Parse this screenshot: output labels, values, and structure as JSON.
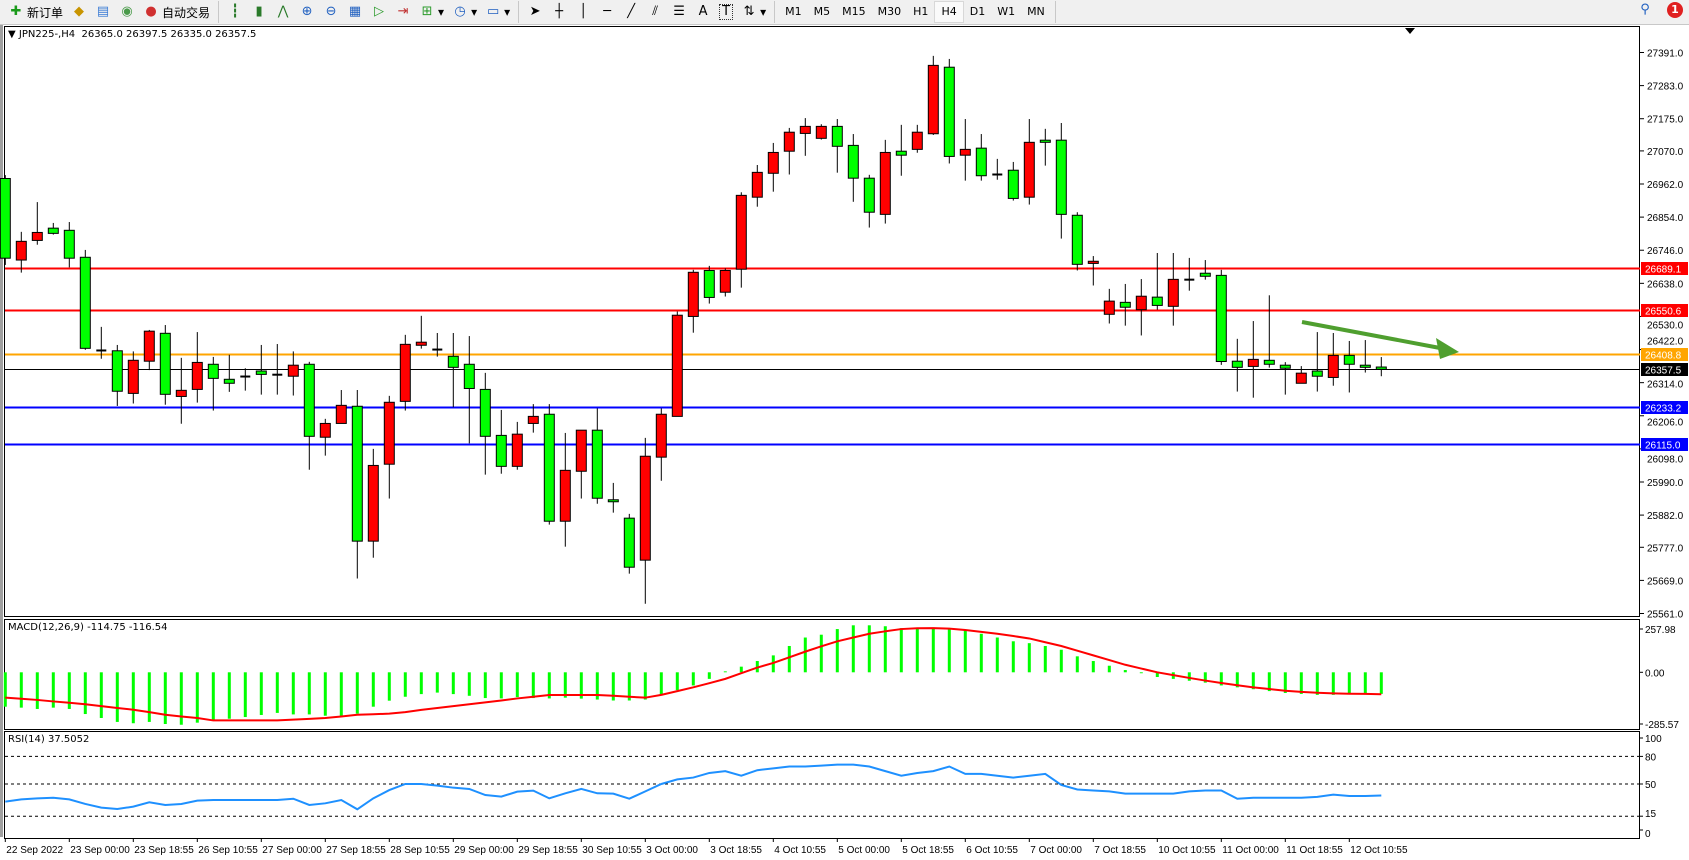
{
  "toolbar": {
    "buttons": [
      {
        "label": "新订单",
        "icon": "new-order-icon"
      },
      {
        "label": "",
        "icon": "gold-bar-icon"
      },
      {
        "label": "",
        "icon": "history-center-icon"
      },
      {
        "label": "",
        "icon": "signal-icon"
      },
      {
        "label": "自动交易",
        "icon": "auto-trading-icon"
      }
    ],
    "chart_tools": [
      "bar-chart-icon",
      "candlestick-icon",
      "line-chart-icon",
      "zoom-in-icon",
      "zoom-out-icon",
      "tile-windows-icon",
      "auto-scroll-icon",
      "chart-shift-icon",
      "indicators-icon",
      "periods-icon",
      "templates-icon"
    ],
    "draw_tools": [
      "cursor-icon",
      "crosshair-icon",
      "vertical-line-icon",
      "horizontal-line-icon",
      "trendline-icon",
      "equidistant-channel-icon",
      "fibonacci-icon",
      "text-icon",
      "text-label-icon",
      "arrows-icon"
    ],
    "draw_labels": {
      "text": "A",
      "label": "T"
    },
    "timeframes": [
      "M1",
      "M5",
      "M15",
      "M30",
      "H1",
      "H4",
      "D1",
      "W1",
      "MN"
    ],
    "active_timeframe": "H4",
    "notification_count": "1"
  },
  "chart": {
    "symbol": "JPN225-,H4",
    "ohlc": "26365.0 26397.5 26335.0 26357.5",
    "bull_color": "#ff0000",
    "bear_color": "#00ff00",
    "arrow_color": "#4f9f2f"
  },
  "chart_data": {
    "type": "candlestick",
    "ylim": [
      25561.0,
      27391.0
    ],
    "y_ticks": [
      "27391.0",
      "27283.0",
      "27175.0",
      "27070.0",
      "26962.0",
      "26854.0",
      "26746.0",
      "26638.0",
      "26530.0",
      "26422.0",
      "26314.0",
      "26206.0",
      "26098.0",
      "25990.0",
      "25882.0",
      "25777.0",
      "25669.0",
      "25561.0"
    ],
    "x_labels": [
      "22 Sep 2022",
      "23 Sep 00:00",
      "23 Sep 18:55",
      "26 Sep 10:55",
      "27 Sep 00:00",
      "27 Sep 18:55",
      "28 Sep 10:55",
      "29 Sep 00:00",
      "29 Sep 18:55",
      "30 Sep 10:55",
      "3 Oct 00:00",
      "3 Oct 18:55",
      "4 Oct 10:55",
      "5 Oct 00:00",
      "5 Oct 18:55",
      "6 Oct 10:55",
      "7 Oct 00:00",
      "7 Oct 18:55",
      "10 Oct 10:55",
      "11 Oct 00:00",
      "11 Oct 18:55",
      "12 Oct 10:55"
    ],
    "levels": [
      {
        "price": 26689.1,
        "label": "26689.1",
        "color": "#ff0000"
      },
      {
        "price": 26550.6,
        "label": "26550.6",
        "color": "#ff0000"
      },
      {
        "price": 26408.8,
        "label": "26408.8",
        "color": "#ffa500"
      },
      {
        "price": 26357.5,
        "label": "26357.5",
        "color": "#000000"
      },
      {
        "price": 26233.2,
        "label": "26233.2",
        "color": "#0000ff"
      },
      {
        "price": 26115.0,
        "label": "26115.0",
        "color": "#0000ff"
      }
    ],
    "candles_ohlc": [
      [
        26980,
        26991,
        26698,
        26720
      ],
      [
        26714,
        26806,
        26673,
        26775
      ],
      [
        26778,
        26903,
        26764,
        26804
      ],
      [
        26818,
        26835,
        26797,
        26801
      ],
      [
        26811,
        26838,
        26690,
        26720
      ],
      [
        26723,
        26747,
        26421,
        26426
      ],
      [
        26419,
        26496,
        26392,
        26418
      ],
      [
        26418,
        26437,
        26238,
        26286
      ],
      [
        26279,
        26416,
        26246,
        26387
      ],
      [
        26384,
        26486,
        26355,
        26482
      ],
      [
        26475,
        26502,
        26242,
        26276
      ],
      [
        26269,
        26395,
        26180,
        26289
      ],
      [
        26292,
        26479,
        26249,
        26380
      ],
      [
        26374,
        26398,
        26223,
        26328
      ],
      [
        26325,
        26405,
        26284,
        26312
      ],
      [
        26334,
        26361,
        26288,
        26333
      ],
      [
        26352,
        26437,
        26275,
        26341
      ],
      [
        26340,
        26440,
        26275,
        26339
      ],
      [
        26335,
        26416,
        26272,
        26371
      ],
      [
        26374,
        26382,
        26030,
        26139
      ],
      [
        26136,
        26196,
        26076,
        26181
      ],
      [
        26181,
        26290,
        26181,
        26240
      ],
      [
        26237,
        26290,
        25675,
        25797
      ],
      [
        25797,
        26098,
        25743,
        26044
      ],
      [
        26048,
        26271,
        25936,
        26250
      ],
      [
        26253,
        26470,
        26223,
        26439
      ],
      [
        26436,
        26532,
        26425,
        26446
      ],
      [
        26422,
        26476,
        26399,
        26421
      ],
      [
        26400,
        26476,
        26234,
        26364
      ],
      [
        26374,
        26466,
        26116,
        26295
      ],
      [
        26292,
        26346,
        26014,
        26139
      ],
      [
        26142,
        26225,
        26017,
        26041
      ],
      [
        26041,
        26186,
        26030,
        26146
      ],
      [
        26181,
        26244,
        26151,
        26204
      ],
      [
        26211,
        26244,
        25851,
        25862
      ],
      [
        25862,
        26150,
        25779,
        26028
      ],
      [
        26025,
        26159,
        25936,
        26159
      ],
      [
        26159,
        26230,
        25919,
        25937
      ],
      [
        25932,
        25987,
        25890,
        25927
      ],
      [
        25872,
        25886,
        25691,
        25712
      ],
      [
        25735,
        26134,
        25593,
        26074
      ],
      [
        26071,
        26230,
        25994,
        26211
      ],
      [
        26204,
        26546,
        26204,
        26534
      ],
      [
        26530,
        26682,
        26477,
        26674
      ],
      [
        26680,
        26695,
        26572,
        26592
      ],
      [
        26609,
        26687,
        26595,
        26680
      ],
      [
        26684,
        26935,
        26624,
        26925
      ],
      [
        26919,
        27024,
        26888,
        27000
      ],
      [
        26997,
        27096,
        26937,
        27065
      ],
      [
        27069,
        27145,
        26993,
        27131
      ],
      [
        27127,
        27177,
        27054,
        27150
      ],
      [
        27111,
        27157,
        27107,
        27150
      ],
      [
        27150,
        27174,
        26999,
        27085
      ],
      [
        27088,
        27125,
        26904,
        26981
      ],
      [
        26981,
        26992,
        26820,
        26870
      ],
      [
        26863,
        27106,
        26833,
        27065
      ],
      [
        27069,
        27155,
        26989,
        27056
      ],
      [
        27075,
        27155,
        27064,
        27131
      ],
      [
        27126,
        27380,
        27122,
        27349
      ],
      [
        27343,
        27370,
        27029,
        27052
      ],
      [
        27056,
        27174,
        26973,
        27075
      ],
      [
        27079,
        27125,
        26973,
        26989
      ],
      [
        26993,
        27044,
        26976,
        26992
      ],
      [
        27007,
        27034,
        26908,
        26915
      ],
      [
        26919,
        27174,
        26895,
        27098
      ],
      [
        27105,
        27142,
        27022,
        27098
      ],
      [
        27105,
        27161,
        26784,
        26863
      ],
      [
        26860,
        26870,
        26680,
        26700
      ],
      [
        26703,
        26727,
        26631,
        26710
      ],
      [
        26537,
        26620,
        26507,
        26580
      ],
      [
        26576,
        26636,
        26500,
        26560
      ],
      [
        26552,
        26652,
        26468,
        26596
      ],
      [
        26593,
        26737,
        26552,
        26566
      ],
      [
        26563,
        26737,
        26500,
        26651
      ],
      [
        26650,
        26721,
        26614,
        26649
      ],
      [
        26671,
        26714,
        26650,
        26661
      ],
      [
        26664,
        26682,
        26372,
        26383
      ],
      [
        26384,
        26457,
        26285,
        26364
      ],
      [
        26367,
        26515,
        26265,
        26390
      ],
      [
        26387,
        26599,
        26363,
        26374
      ],
      [
        26371,
        26381,
        26275,
        26361
      ],
      [
        26312,
        26368,
        26312,
        26345
      ],
      [
        26352,
        26479,
        26285,
        26335
      ],
      [
        26331,
        26476,
        26304,
        26403
      ],
      [
        26403,
        26450,
        26282,
        26374
      ],
      [
        26371,
        26453,
        26347,
        26364
      ],
      [
        26365,
        26397.5,
        26335,
        26357.5
      ]
    ]
  },
  "macd": {
    "label": "MACD(12,26,9) -114.75 -116.54",
    "ylim": [
      -285.57,
      257.98
    ],
    "y_ticks": [
      "257.98",
      "0.00",
      "-285.57"
    ],
    "hist_color": "#00ff00",
    "signal_color": "#ff0000",
    "histogram": [
      -183,
      -188,
      -195,
      -188,
      -195,
      -222,
      -243,
      -264,
      -271,
      -264,
      -275,
      -279,
      -268,
      -256,
      -247,
      -238,
      -227,
      -216,
      -224,
      -224,
      -231,
      -236,
      -220,
      -183,
      -151,
      -130,
      -116,
      -108,
      -116,
      -125,
      -137,
      -139,
      -132,
      -137,
      -139,
      -135,
      -140,
      -145,
      -150,
      -150,
      -145,
      -120,
      -95,
      -70,
      -35,
      5,
      30,
      60,
      90,
      140,
      185,
      200,
      230,
      250,
      250,
      245,
      235,
      235,
      235,
      230,
      225,
      205,
      185,
      165,
      155,
      140,
      120,
      85,
      60,
      35,
      12,
      -5,
      -25,
      -35,
      -45,
      -55,
      -70,
      -80,
      -90,
      -100,
      -110,
      -115,
      -120,
      -120,
      -115,
      -115,
      -114.75
    ],
    "signal": [
      -135,
      -141,
      -147,
      -155,
      -162,
      -170,
      -180,
      -190,
      -199,
      -212,
      -226,
      -235,
      -243,
      -256,
      -256,
      -256,
      -256,
      -256,
      -252,
      -248,
      -243,
      -235,
      -226,
      -223,
      -220,
      -212,
      -200,
      -190,
      -180,
      -170,
      -160,
      -150,
      -139,
      -130,
      -121,
      -121,
      -121,
      -121,
      -125,
      -130,
      -135,
      -120,
      -100,
      -80,
      -58,
      -35,
      -5,
      25,
      50,
      80,
      110,
      138,
      165,
      185,
      205,
      218,
      230,
      234,
      235,
      232,
      225,
      215,
      205,
      193,
      180,
      160,
      140,
      115,
      90,
      65,
      40,
      20,
      0,
      -15,
      -30,
      -44,
      -57,
      -69,
      -80,
      -89,
      -98,
      -104,
      -109,
      -112,
      -114,
      -115,
      -116.54
    ]
  },
  "rsi": {
    "label": "RSI(14) 37.5052",
    "y_ticks": [
      "100",
      "80",
      "50",
      "15",
      "0"
    ],
    "levels": [
      80,
      50,
      15
    ],
    "line_color": "#1e90ff",
    "values": [
      30.8,
      33.3,
      34.4,
      35.1,
      33.3,
      28.3,
      24.3,
      22.8,
      25.4,
      30.1,
      27.2,
      28.3,
      31.9,
      32.6,
      32.6,
      32.6,
      32.6,
      32.6,
      34,
      27.2,
      29,
      32.6,
      22.5,
      34.4,
      43.4,
      50,
      50,
      48.2,
      46,
      44.6,
      38,
      36.3,
      41.7,
      42.8,
      34.4,
      39.9,
      44.6,
      39.9,
      39.5,
      34,
      42,
      50,
      55,
      57,
      62,
      64,
      59,
      65,
      67,
      69,
      69,
      70,
      71,
      71,
      69,
      64,
      59,
      62,
      64,
      69,
      61,
      61,
      59,
      57,
      59,
      61,
      49,
      44,
      43,
      42,
      39.5,
      39.5,
      39.5,
      39.5,
      42,
      43,
      43,
      34,
      35,
      35,
      35,
      35,
      36,
      38.5,
      37,
      37,
      37.5
    ]
  }
}
